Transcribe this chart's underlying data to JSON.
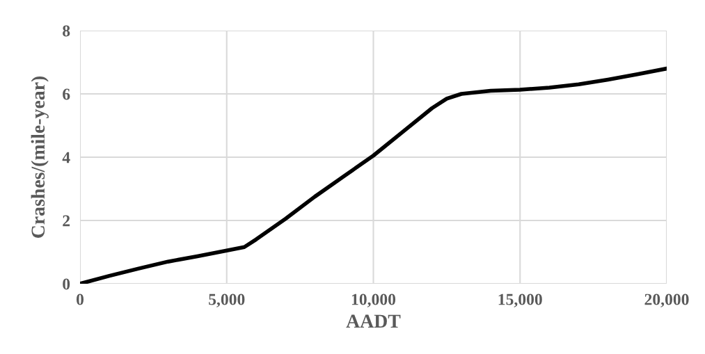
{
  "chart_data": {
    "type": "line",
    "xlabel": "AADT",
    "ylabel": "Crashes/(mile-year)",
    "x": [
      0,
      1000,
      2000,
      3000,
      4000,
      5000,
      5600,
      6000,
      7000,
      8000,
      9000,
      10000,
      11000,
      12000,
      12500,
      13000,
      14000,
      15000,
      16000,
      17000,
      18000,
      19000,
      20000
    ],
    "series": [
      {
        "color": "#000000",
        "values": [
          0,
          0.25,
          0.48,
          0.7,
          0.87,
          1.05,
          1.16,
          1.4,
          2.05,
          2.75,
          3.4,
          4.05,
          4.8,
          5.55,
          5.85,
          6.0,
          6.1,
          6.13,
          6.2,
          6.3,
          6.45,
          6.62,
          6.8
        ]
      }
    ],
    "xlim": [
      0,
      20000
    ],
    "ylim": [
      0,
      8
    ],
    "xticks": [
      {
        "value": 0,
        "label": "0"
      },
      {
        "value": 5000,
        "label": "5,000"
      },
      {
        "value": 10000,
        "label": "10,000"
      },
      {
        "value": 15000,
        "label": "15,000"
      },
      {
        "value": 20000,
        "label": "20,000"
      }
    ],
    "yticks": [
      0,
      2,
      4,
      6,
      8
    ],
    "grid": true,
    "marker": "none",
    "line_style": "solid",
    "legend": false
  }
}
